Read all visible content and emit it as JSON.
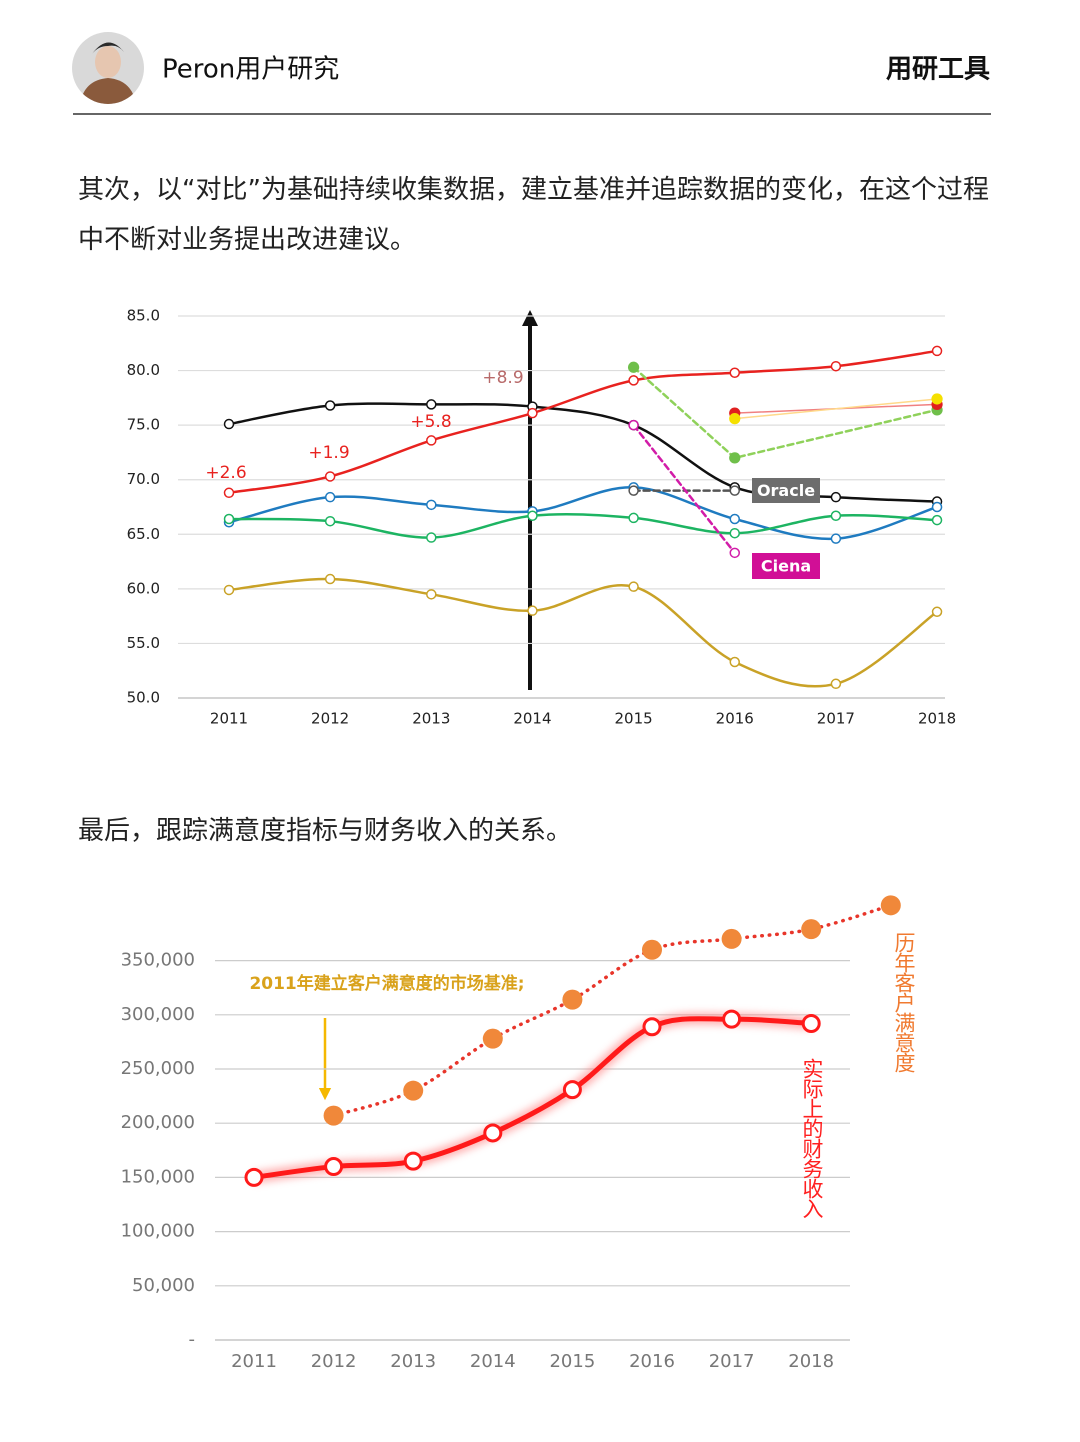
{
  "header": {
    "author": "Peron用户研究",
    "tag": "用研工具"
  },
  "paragraphs": [
    "其次，以“对比”为基础持续收集数据，建立基准并追踪数据的变化，在这个过程中不断对业务提出改进建议。",
    "最后，跟踪满意度指标与财务收入的关系。"
  ],
  "chart_data": [
    {
      "type": "line",
      "categories": [
        "2011",
        "2012",
        "2013",
        "2014",
        "2015",
        "2016",
        "2017",
        "2018"
      ],
      "ylim": [
        50,
        85
      ],
      "yticks": [
        {
          "value": 50,
          "label": "50.0"
        },
        {
          "value": 55,
          "label": "55.0"
        },
        {
          "value": 60,
          "label": "60.0"
        },
        {
          "value": 65,
          "label": "65.0"
        },
        {
          "value": 70,
          "label": "70.0"
        },
        {
          "value": 75,
          "label": "75.0"
        },
        {
          "value": 80,
          "label": "80.0"
        },
        {
          "value": 85,
          "label": "85.0"
        }
      ],
      "grid": true,
      "series": [
        {
          "color": "#111111",
          "values": [
            75.1,
            76.8,
            76.9,
            76.7,
            75.0,
            69.3,
            68.4,
            68.0
          ],
          "style": "solid",
          "marker": "hollow"
        },
        {
          "color": "#e8221f",
          "values": [
            68.8,
            70.3,
            73.6,
            76.1,
            79.1,
            79.8,
            80.4,
            81.8
          ],
          "style": "solid",
          "marker": "hollow"
        },
        {
          "color": "#1f7bc0",
          "values": [
            66.1,
            68.4,
            67.7,
            67.1,
            69.3,
            66.4,
            64.6,
            67.5
          ],
          "style": "solid",
          "marker": "hollow"
        },
        {
          "color": "#1db462",
          "values": [
            66.4,
            66.2,
            64.7,
            66.7,
            66.5,
            65.1,
            66.7,
            66.3
          ],
          "style": "solid",
          "marker": "hollow"
        },
        {
          "color": "#c9a227",
          "values": [
            59.9,
            60.9,
            59.5,
            58.0,
            60.2,
            53.3,
            51.3,
            57.9
          ],
          "style": "solid",
          "marker": "hollow"
        },
        {
          "name": "Oracle",
          "color": "#555555",
          "label_color": "#6d6d6d",
          "x": [
            "2015",
            "2016"
          ],
          "values": [
            69.0,
            69.0
          ],
          "style": "dashed",
          "marker": "hollow"
        },
        {
          "name": "Ciena",
          "color": "#d21ca8",
          "label_color": "#d10f96",
          "x": [
            "2015",
            "2016"
          ],
          "values": [
            75.0,
            63.3
          ],
          "style": "dashed",
          "marker": "hollow"
        },
        {
          "color": "#8fd15a",
          "marker_color": "#6fbf4a",
          "x": [
            "2015",
            "2016",
            "2018"
          ],
          "values": [
            80.3,
            72.0,
            76.4
          ],
          "style": "dashed",
          "marker": "filled"
        },
        {
          "color": "#f08080",
          "marker_color": "#e02020",
          "x": [
            "2016",
            "2018"
          ],
          "values": [
            76.1,
            76.9
          ],
          "style": "thin",
          "marker": "filled"
        },
        {
          "color": "#ffd98a",
          "marker_color": "#f5e000",
          "x": [
            "2016",
            "2018"
          ],
          "values": [
            75.6,
            77.4
          ],
          "style": "thin",
          "marker": "filled"
        }
      ],
      "annotations": [
        {
          "text": "+2.6",
          "color": "#e8221f"
        },
        {
          "text": "+1.9",
          "color": "#e8221f"
        },
        {
          "text": "+5.8",
          "color": "#e8221f"
        },
        {
          "text": "+8.9",
          "color": "#b86a6a"
        }
      ]
    },
    {
      "type": "line",
      "categories": [
        "2011",
        "2012",
        "2013",
        "2014",
        "2015",
        "2016",
        "2017",
        "2018",
        null
      ],
      "ylim": [
        0,
        400000
      ],
      "yticks": [
        {
          "value": 0,
          "label": "-"
        },
        {
          "value": 50000,
          "label": "50,000"
        },
        {
          "value": 100000,
          "label": "100,000"
        },
        {
          "value": 150000,
          "label": "150,000"
        },
        {
          "value": 200000,
          "label": "200,000"
        },
        {
          "value": 250000,
          "label": "250,000"
        },
        {
          "value": 300000,
          "label": "300,000"
        },
        {
          "value": 350000,
          "label": "350,000"
        }
      ],
      "grid": true,
      "series": [
        {
          "name": "实际上的财务收入",
          "color": "#ff1a1a",
          "label_color": "#ff2020",
          "values": [
            150000,
            160000,
            165000,
            191000,
            231000,
            289000,
            296000,
            292000,
            null
          ],
          "style": "glow",
          "marker": "hollow"
        },
        {
          "name": "历年客户满意度",
          "color": "#e8352a",
          "marker_color": "#f0883a",
          "label_color": "#f07a30",
          "values": [
            null,
            207000,
            230000,
            278000,
            314000,
            360000,
            370000,
            379000,
            401000
          ],
          "style": "dotted",
          "marker": "filled"
        }
      ],
      "annotations": [
        {
          "text": "2011年建立客户满意度的市场基准;",
          "color": "#d9a21b"
        }
      ]
    }
  ]
}
